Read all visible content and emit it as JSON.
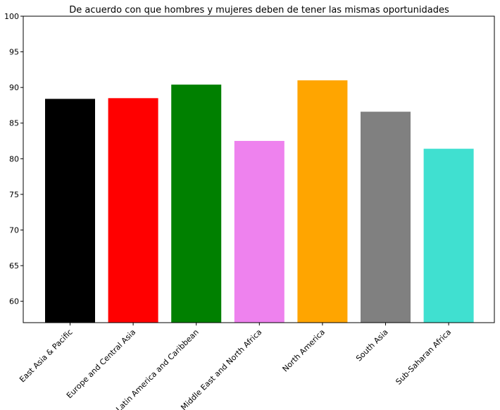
{
  "chart_data": {
    "type": "bar",
    "title": "De acuerdo con que hombres y mujeres deben de tener las mismas oportunidades",
    "xlabel": "",
    "ylabel": "",
    "categories": [
      "East Asia & Pacific",
      "Europe and Central Asia",
      "Latin America and Caribbean",
      "Middle East and North Africa",
      "North America",
      "South Asia",
      "Sub-Saharan Africa"
    ],
    "values": [
      88.4,
      88.5,
      90.4,
      82.5,
      91.0,
      86.6,
      81.4
    ],
    "colors": [
      "#000000",
      "#ff0000",
      "#008000",
      "#ee82ee",
      "#ffa500",
      "#808080",
      "#40e0d0"
    ],
    "ylim": [
      57,
      100
    ],
    "yticks": [
      "60",
      "65",
      "70",
      "75",
      "80",
      "85",
      "90",
      "95",
      "100"
    ],
    "grid": false,
    "legend": "none"
  }
}
